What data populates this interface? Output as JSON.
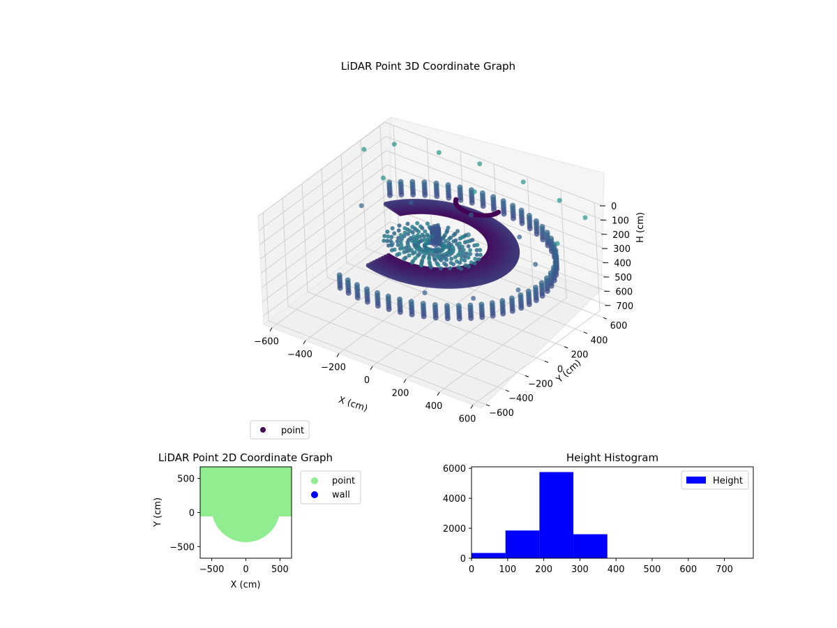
{
  "colors": {
    "viridis_dark": "#440154",
    "viridis_mid": "#31688e",
    "viridis_teal": "#35b779",
    "point_2d": "#90ee90",
    "wall_2d": "#0000ff",
    "hist_bar": "#0000ff",
    "pane": "#f2f2f2",
    "grid": "#cccccc"
  },
  "chart_data": [
    {
      "type": "scatter",
      "projection": "3d",
      "title": "LiDAR Point 3D Coordinate Graph",
      "xlabel": "X (cm)",
      "ylabel": "Y (cm)",
      "zlabel": "H (cm)",
      "xticks": [
        -600,
        -400,
        -200,
        0,
        200,
        400,
        600
      ],
      "yticks": [
        -600,
        -400,
        -200,
        0,
        200,
        400,
        600
      ],
      "zticks": [
        0,
        100,
        200,
        300,
        400,
        500,
        600,
        700
      ],
      "xlim": [
        -650,
        650
      ],
      "ylim": [
        -650,
        650
      ],
      "zlim": [
        760,
        0
      ],
      "z_axis_inverted": true,
      "colormap": "viridis",
      "grid": true,
      "legend": {
        "placement": "below-left",
        "entries": [
          "point"
        ]
      },
      "series": [
        {
          "name": "point",
          "description_points": "sampled points of a floor scan: dense ring of points at height ~150-250 cm around the scanner, outer wall ring ~250-330 cm, sparse ceiling points near 0 cm",
          "points": [
            {
              "x": -620,
              "y": 380,
              "h": 40
            },
            {
              "x": -520,
              "y": 520,
              "h": 30
            },
            {
              "x": -300,
              "y": 600,
              "h": 30
            },
            {
              "x": -80,
              "y": 640,
              "h": 30
            },
            {
              "x": 180,
              "y": 640,
              "h": 40
            },
            {
              "x": 420,
              "y": 600,
              "h": 40
            },
            {
              "x": 620,
              "y": 520,
              "h": 30
            },
            {
              "x": 640,
              "y": 200,
              "h": 40
            },
            {
              "x": -400,
              "y": 200,
              "h": 50
            },
            {
              "x": 40,
              "y": 380,
              "h": 40
            },
            {
              "x": -480,
              "y": 100,
              "h": 230
            },
            {
              "x": -300,
              "y": 300,
              "h": 230
            },
            {
              "x": 0,
              "y": 400,
              "h": 230
            },
            {
              "x": 300,
              "y": 380,
              "h": 240
            },
            {
              "x": 500,
              "y": 200,
              "h": 250
            },
            {
              "x": 560,
              "y": -80,
              "h": 260
            },
            {
              "x": 420,
              "y": -300,
              "h": 270
            },
            {
              "x": 200,
              "y": -420,
              "h": 270
            },
            {
              "x": -150,
              "y": -150,
              "h": 220
            },
            {
              "x": 0,
              "y": 0,
              "h": 180
            },
            {
              "x": 150,
              "y": 120,
              "h": 160
            },
            {
              "x": 60,
              "y": -60,
              "h": 210
            }
          ]
        }
      ]
    },
    {
      "type": "scatter",
      "title": "LiDAR Point 2D Coordinate Graph",
      "xlabel": "X (cm)",
      "ylabel": "Y (cm)",
      "xticks": [
        -500,
        0,
        500
      ],
      "yticks": [
        -500,
        0,
        500
      ],
      "xlim": [
        -670,
        670
      ],
      "ylim": [
        -670,
        670
      ],
      "legend": {
        "placement": "outside-right",
        "entries": [
          "point",
          "wall"
        ]
      },
      "series": [
        {
          "name": "point",
          "color": "#90ee90",
          "region": "filled disc-like footprint of the scan, radius ~500 cm, extending to top edge and flattened wings at y≈0"
        },
        {
          "name": "wall",
          "color": "#0000ff",
          "points": []
        }
      ]
    },
    {
      "type": "bar",
      "subtype": "histogram",
      "title": "Height Histogram",
      "xlabel": "",
      "ylabel": "",
      "xlim": [
        0,
        780
      ],
      "ylim": [
        0,
        6100
      ],
      "xticks": [
        0,
        100,
        200,
        300,
        400,
        500,
        600,
        700
      ],
      "yticks": [
        0,
        2000,
        4000,
        6000
      ],
      "legend": {
        "placement": "top-right",
        "entries": [
          "Height"
        ]
      },
      "series": [
        {
          "name": "Height",
          "bins": [
            {
              "start": 0,
              "end": 94,
              "count": 350
            },
            {
              "start": 94,
              "end": 188,
              "count": 1850
            },
            {
              "start": 188,
              "end": 282,
              "count": 5750
            },
            {
              "start": 282,
              "end": 376,
              "count": 1600
            },
            {
              "start": 376,
              "end": 470,
              "count": 0
            },
            {
              "start": 470,
              "end": 564,
              "count": 0
            },
            {
              "start": 564,
              "end": 658,
              "count": 0
            },
            {
              "start": 658,
              "end": 752,
              "count": 0
            }
          ]
        }
      ]
    }
  ]
}
